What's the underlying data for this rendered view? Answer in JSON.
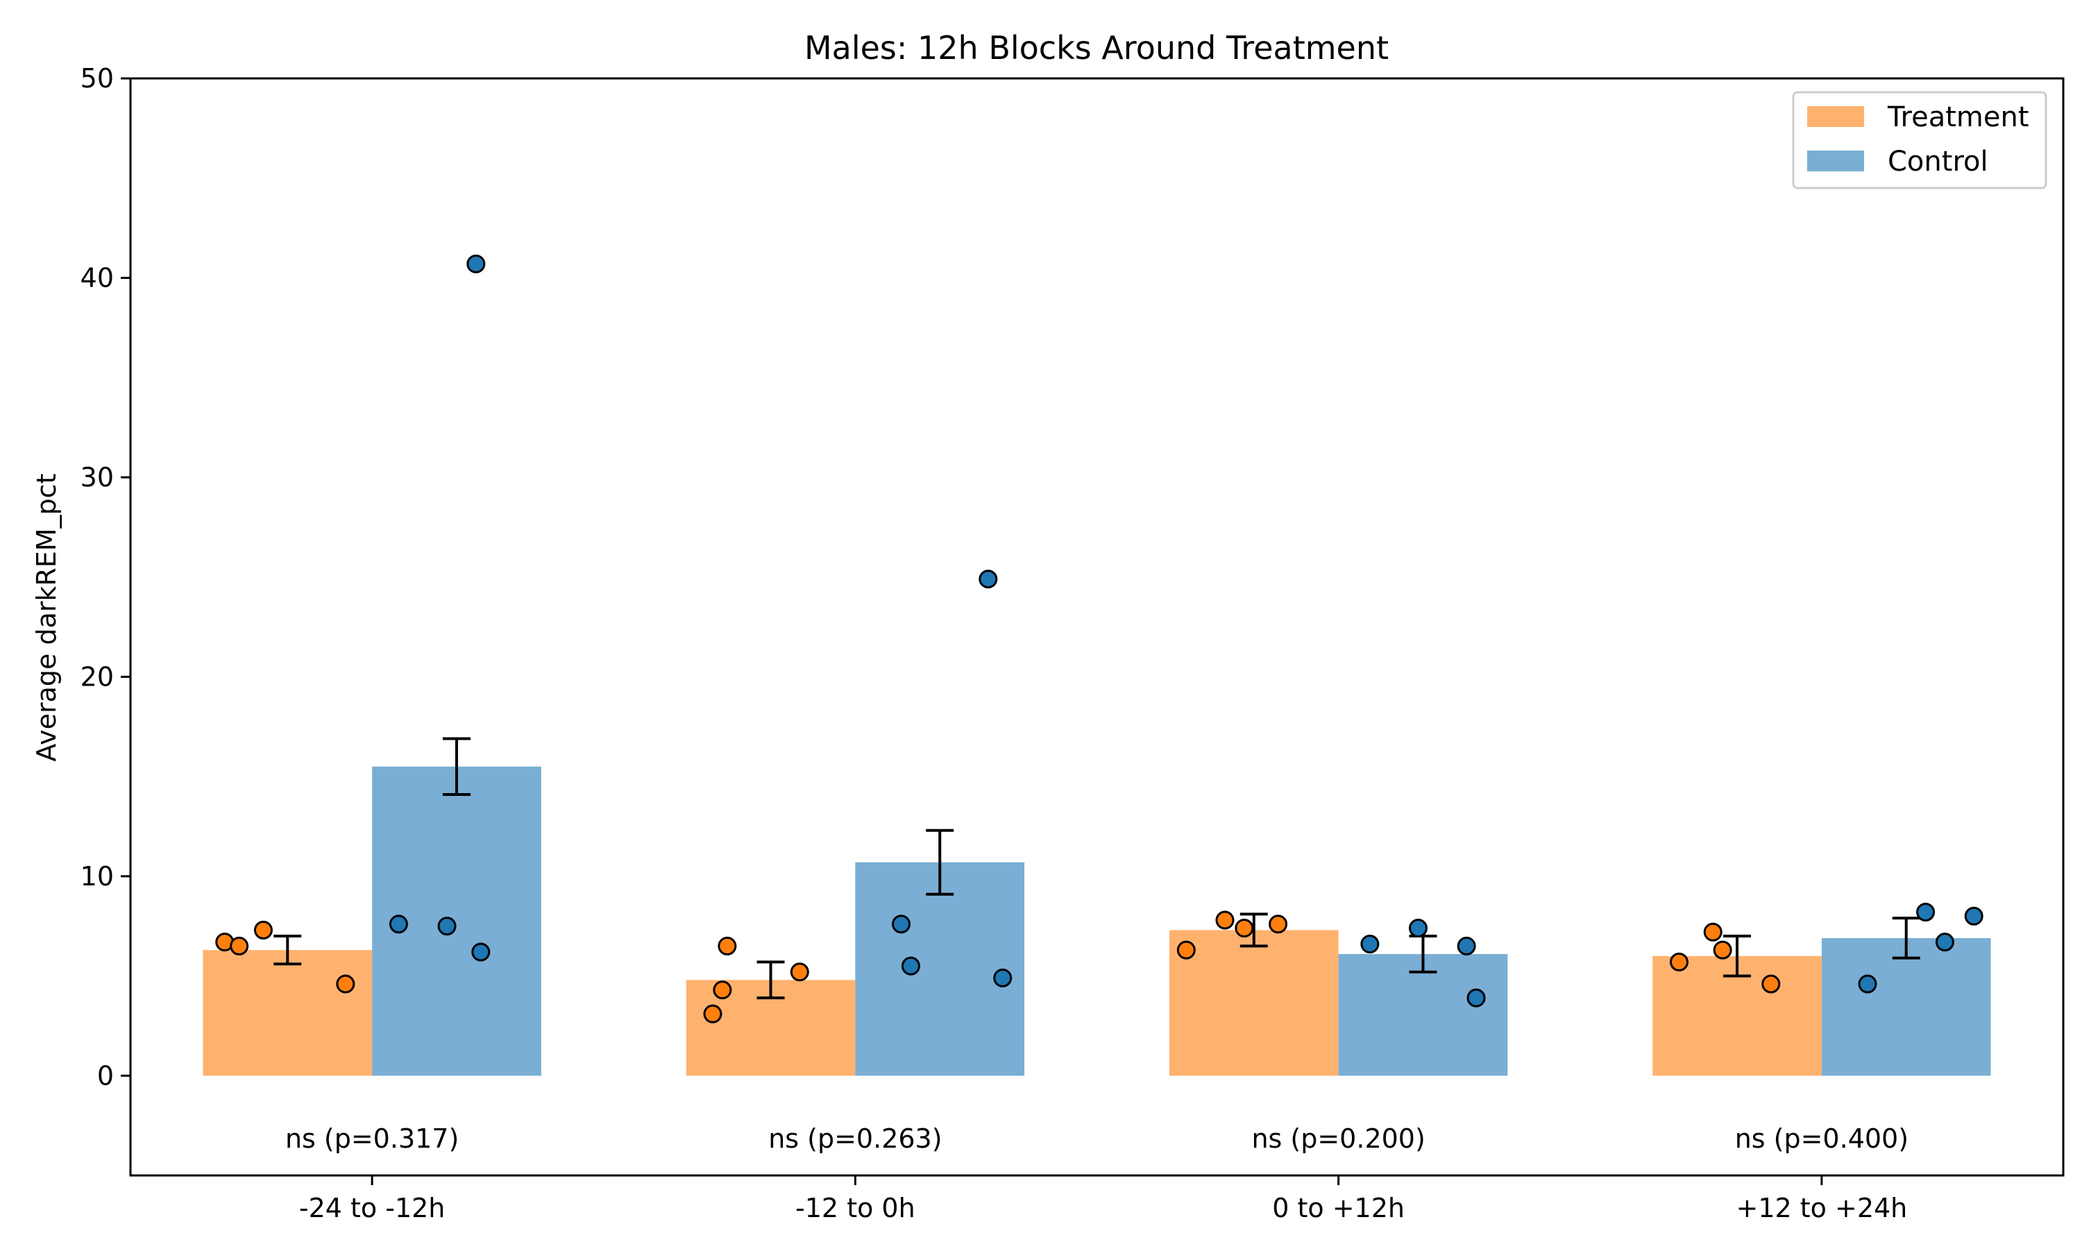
{
  "chart_data": {
    "type": "bar",
    "title": "Males: 12h Blocks Around Treatment",
    "xlabel": "",
    "ylabel": "Average darkREM_pct",
    "ylim": [
      -5,
      50
    ],
    "yticks": [
      0,
      10,
      20,
      30,
      40,
      50
    ],
    "grid": false,
    "legend_position": "top-right",
    "categories": [
      "-24 to -12h",
      "-12 to 0h",
      "0 to +12h",
      "+12 to +24h"
    ],
    "series": [
      {
        "name": "Treatment",
        "bar_color": "#ffb26e",
        "point_color": "#ff7f0e",
        "values": [
          6.3,
          4.8,
          7.3,
          6.0
        ],
        "error": [
          0.7,
          0.9,
          0.8,
          1.0
        ],
        "points": [
          [
            {
              "offset": -0.13,
              "y": 6.7
            },
            {
              "offset": -0.1,
              "y": 6.5
            },
            {
              "offset": -0.05,
              "y": 7.3
            },
            {
              "offset": 0.12,
              "y": 4.6
            }
          ],
          [
            {
              "offset": -0.12,
              "y": 3.1
            },
            {
              "offset": -0.1,
              "y": 4.3
            },
            {
              "offset": -0.09,
              "y": 6.5
            },
            {
              "offset": 0.06,
              "y": 5.2
            }
          ],
          [
            {
              "offset": -0.14,
              "y": 6.3
            },
            {
              "offset": -0.06,
              "y": 7.8
            },
            {
              "offset": -0.02,
              "y": 7.4
            },
            {
              "offset": 0.05,
              "y": 7.6
            }
          ],
          [
            {
              "offset": -0.12,
              "y": 5.7
            },
            {
              "offset": -0.05,
              "y": 7.2
            },
            {
              "offset": -0.03,
              "y": 6.3
            },
            {
              "offset": 0.07,
              "y": 4.6
            }
          ]
        ]
      },
      {
        "name": "Control",
        "bar_color": "#7aaed4",
        "point_color": "#1f77b4",
        "values": [
          15.5,
          10.7,
          6.1,
          6.9
        ],
        "error": [
          1.4,
          1.6,
          0.9,
          1.0
        ],
        "points": [
          [
            {
              "offset": -0.12,
              "y": 7.6
            },
            {
              "offset": -0.02,
              "y": 7.5
            },
            {
              "offset": 0.04,
              "y": 40.7
            },
            {
              "offset": 0.05,
              "y": 6.2
            }
          ],
          [
            {
              "offset": -0.08,
              "y": 7.6
            },
            {
              "offset": -0.06,
              "y": 5.5
            },
            {
              "offset": 0.1,
              "y": 24.9
            },
            {
              "offset": 0.13,
              "y": 4.9
            }
          ],
          [
            {
              "offset": -0.11,
              "y": 6.6
            },
            {
              "offset": -0.01,
              "y": 7.4
            },
            {
              "offset": 0.09,
              "y": 6.5
            },
            {
              "offset": 0.11,
              "y": 3.9
            }
          ],
          [
            {
              "offset": -0.08,
              "y": 4.6
            },
            {
              "offset": 0.04,
              "y": 8.2
            },
            {
              "offset": 0.08,
              "y": 6.7
            },
            {
              "offset": 0.14,
              "y": 8.0
            }
          ]
        ]
      }
    ],
    "significance": [
      "ns (p=0.317)",
      "ns (p=0.263)",
      "ns (p=0.200)",
      "ns (p=0.400)"
    ]
  }
}
